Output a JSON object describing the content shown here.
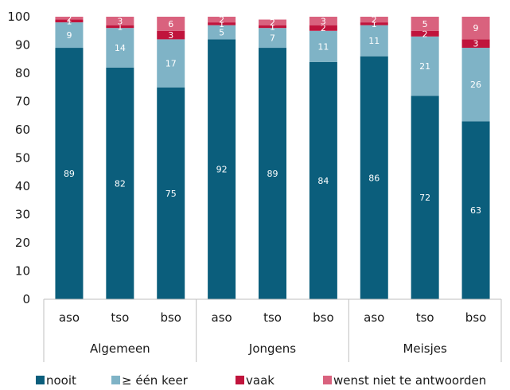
{
  "chart_data": {
    "type": "stacked-bar",
    "title": "",
    "xlabel": "",
    "ylabel": "",
    "ylim": [
      0,
      100
    ],
    "yticks": [
      0,
      10,
      20,
      30,
      40,
      50,
      60,
      70,
      80,
      90,
      100
    ],
    "grid": false,
    "legend_position": "bottom",
    "groups": [
      {
        "name": "Algemeen",
        "categories": [
          "aso",
          "tso",
          "bso"
        ]
      },
      {
        "name": "Jongens",
        "categories": [
          "aso",
          "tso",
          "bso"
        ]
      },
      {
        "name": "Meisjes",
        "categories": [
          "aso",
          "tso",
          "bso"
        ]
      }
    ],
    "series": [
      {
        "name": "nooit",
        "color": "#0b5e7c",
        "label_color": "#ffffff",
        "values": [
          89,
          82,
          75,
          92,
          89,
          84,
          86,
          72,
          63
        ]
      },
      {
        "name": "≥ één keer",
        "color": "#7fb3c6",
        "label_color": "#ffffff",
        "values": [
          9,
          14,
          17,
          5,
          7,
          11,
          11,
          21,
          26
        ]
      },
      {
        "name": "vaak",
        "color": "#c0143c",
        "label_color": "#ffffff",
        "values": [
          1,
          1,
          3,
          1,
          1,
          2,
          1,
          2,
          3
        ]
      },
      {
        "name": "wenst niet te antwoorden",
        "color": "#d9627e",
        "label_color": "#ffffff",
        "values": [
          2,
          3,
          6,
          2,
          2,
          3,
          2,
          5,
          9
        ]
      }
    ]
  }
}
